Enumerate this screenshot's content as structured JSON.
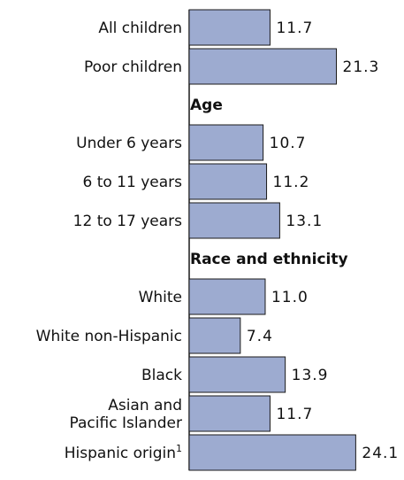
{
  "chart_data": {
    "type": "bar",
    "orientation": "horizontal",
    "bar_color": "#9dabd0",
    "bar_edge_color": "#1a1a1a",
    "groups": [
      {
        "heading": "",
        "items": [
          {
            "label": "All children",
            "value": 11.7,
            "value_label": "11.7"
          },
          {
            "label": "Poor children",
            "value": 21.3,
            "value_label": "21.3"
          }
        ]
      },
      {
        "heading": "Age",
        "items": [
          {
            "label": "Under 6 years",
            "value": 10.7,
            "value_label": "10.7"
          },
          {
            "label": "6 to 11 years",
            "value": 11.2,
            "value_label": "11.2"
          },
          {
            "label": "12 to 17 years",
            "value": 13.1,
            "value_label": "13.1"
          }
        ]
      },
      {
        "heading": "Race and ethnicity",
        "items": [
          {
            "label": "White",
            "value": 11.0,
            "value_label": "11.0"
          },
          {
            "label": "White non-Hispanic",
            "value": 7.4,
            "value_label": "7.4"
          },
          {
            "label": "Black",
            "value": 13.9,
            "value_label": "13.9"
          },
          {
            "label": "Asian and Pacific Islander",
            "label_lines": [
              "Asian and",
              "Pacific Islander"
            ],
            "value": 11.7,
            "value_label": "11.7"
          },
          {
            "label": "Hispanic origin",
            "footnote": "1",
            "value": 24.1,
            "value_label": "24.1"
          }
        ]
      }
    ]
  }
}
